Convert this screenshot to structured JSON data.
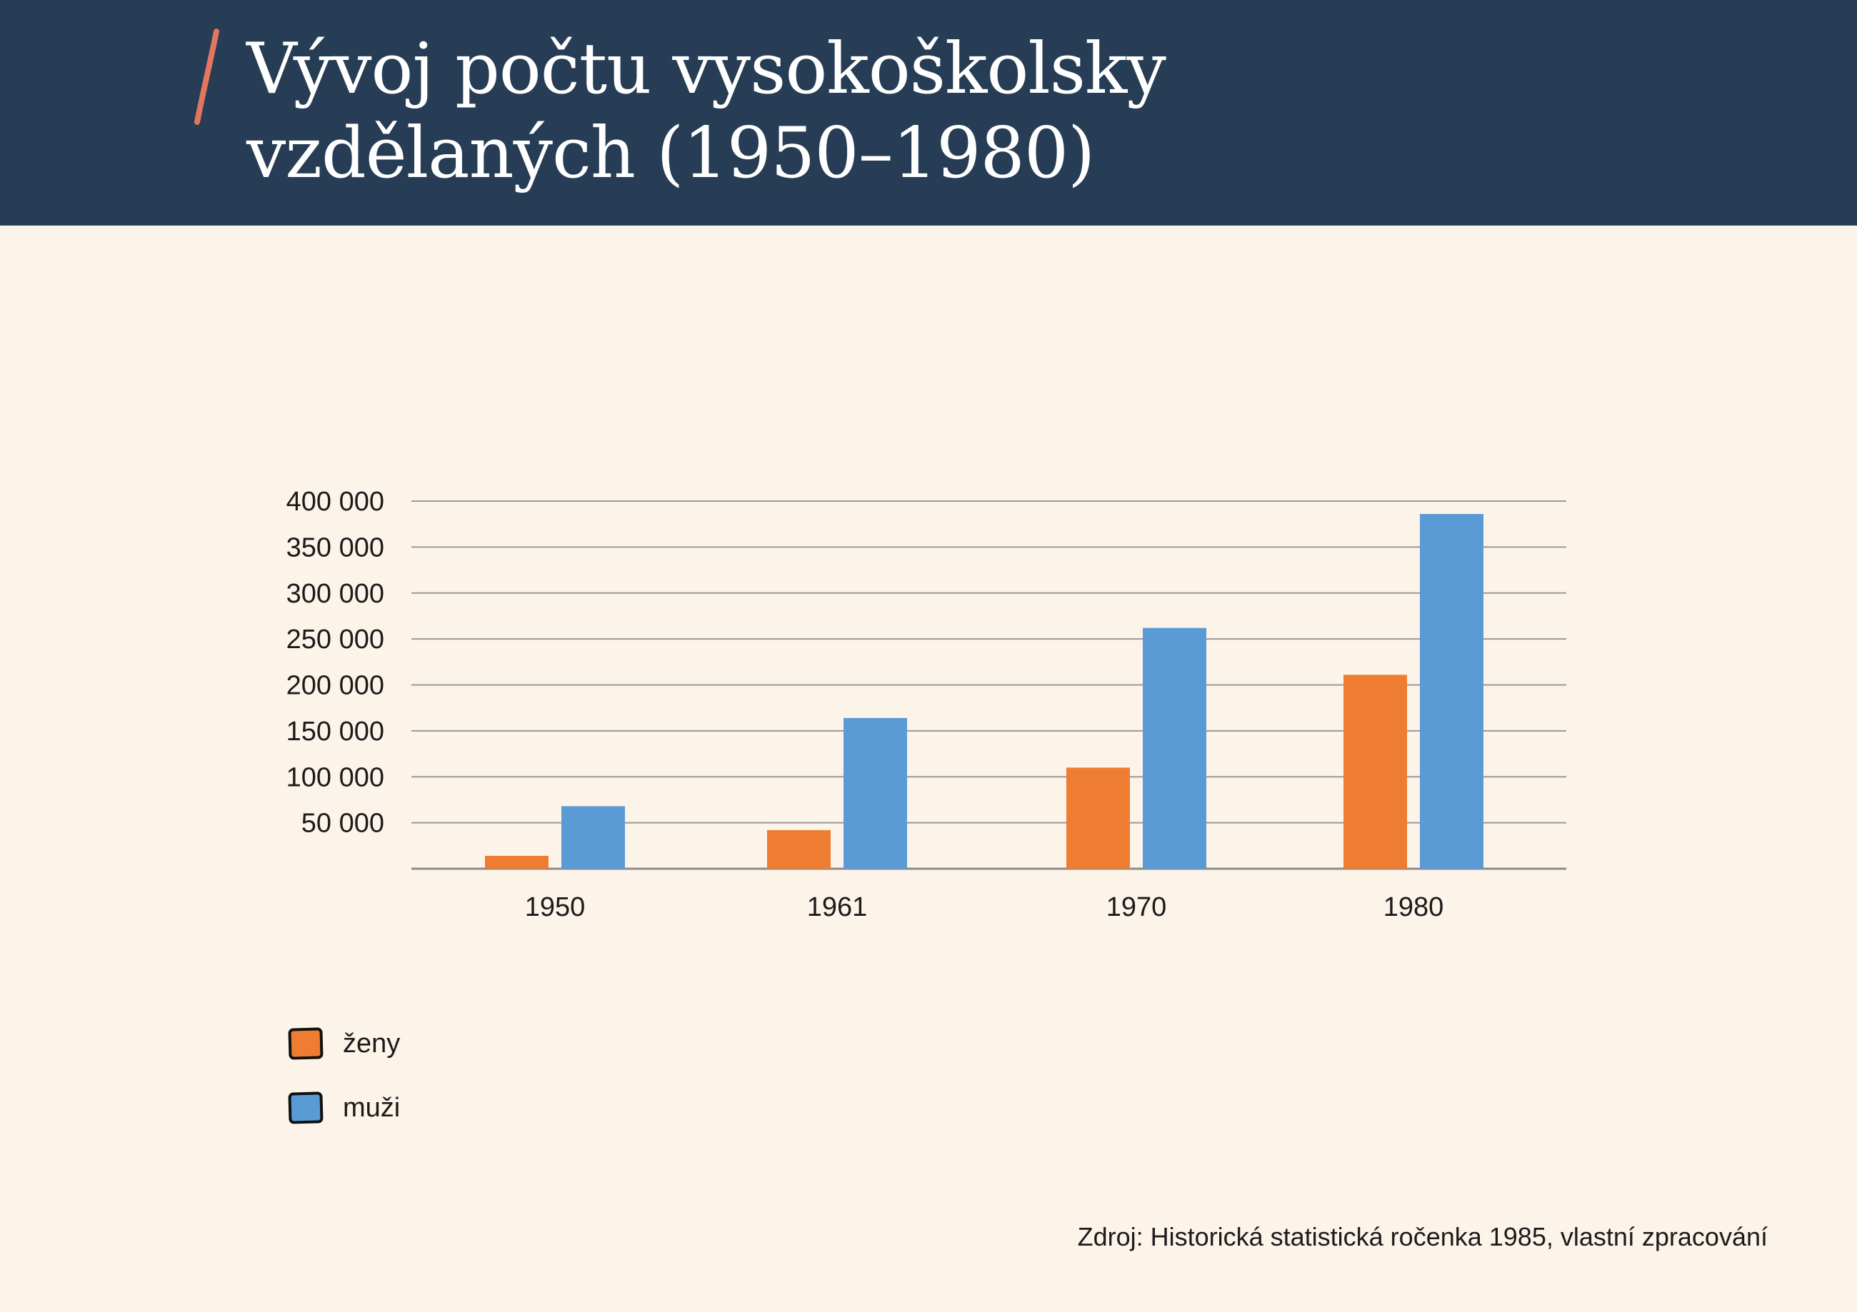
{
  "header": {
    "title_line1": "Vývoj počtu vysokoškolsky",
    "title_line2": "vzdělaných (1950–1980)",
    "background_color": "#263d55",
    "accent_color": "#e2765e"
  },
  "chart_data": {
    "type": "bar",
    "title": "Vývoj počtu vysokoškolsky vzdělaných (1950–1980)",
    "xlabel": "",
    "ylabel": "",
    "categories": [
      "1950",
      "1961",
      "1970",
      "1980"
    ],
    "series": [
      {
        "name": "ženy",
        "color": "#ee7d31",
        "values": [
          14000,
          42000,
          110000,
          211000
        ]
      },
      {
        "name": "muži",
        "color": "#5b9bd5",
        "values": [
          68000,
          164000,
          262000,
          386000
        ]
      }
    ],
    "ylim": [
      0,
      400000
    ],
    "y_ticks": [
      {
        "value": 50000,
        "label": "50 000"
      },
      {
        "value": 100000,
        "label": "100 000"
      },
      {
        "value": 150000,
        "label": "150 000"
      },
      {
        "value": 200000,
        "label": "200 000"
      },
      {
        "value": 250000,
        "label": "250 000"
      },
      {
        "value": 300000,
        "label": "300 000"
      },
      {
        "value": 350000,
        "label": "350 000"
      },
      {
        "value": 400000,
        "label": "400 000"
      }
    ],
    "grid": true,
    "legend_position": "bottom-left"
  },
  "legend": {
    "items": [
      {
        "label": "ženy",
        "color": "#ee7d31"
      },
      {
        "label": "muži",
        "color": "#5b9bd5"
      }
    ]
  },
  "footer": {
    "source": "Zdroj: Historická statistická ročenka 1985, vlastní zpracování"
  }
}
